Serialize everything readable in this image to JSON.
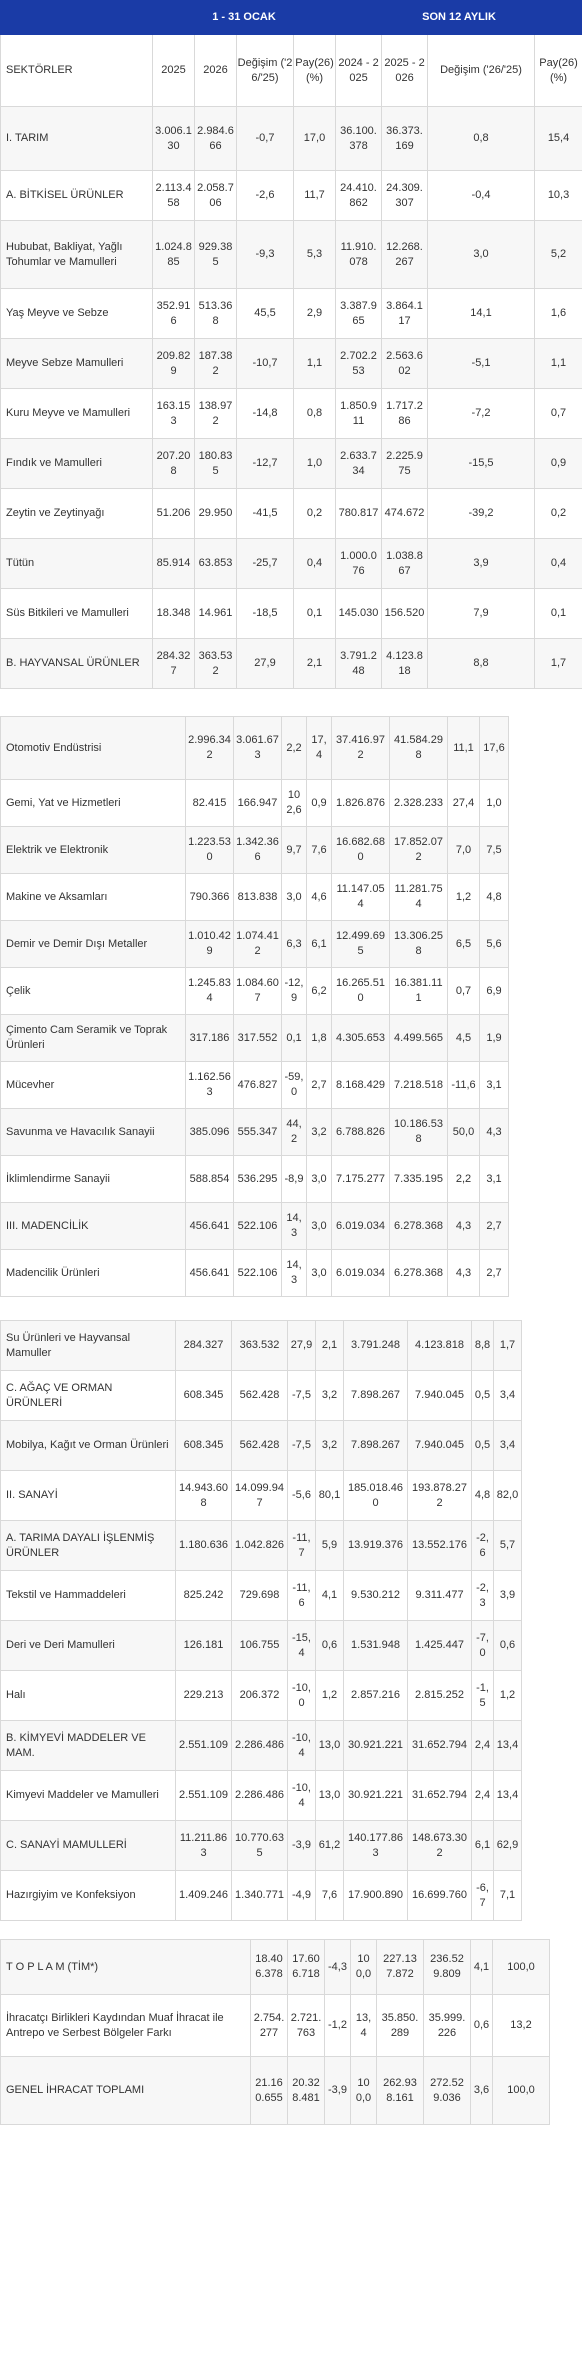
{
  "header": {
    "period1": "1 - 31 OCAK",
    "period2": "SON 12 AYLIK",
    "col_sector": "SEKTÖRLER",
    "col_y1": "2025",
    "col_y2": "2026",
    "col_change": "Değişim ('26/'25)",
    "col_share": "Pay(26) (%)",
    "col_y3": "2024 - 2025",
    "col_y4": "2025 - 2026",
    "col_change2": "Değişim ('26/'25)",
    "col_share2": "Pay(26) (%)"
  },
  "table1": [
    [
      "I. TARIM",
      "3.006.130",
      "2.984.666",
      "-0,7",
      "17,0",
      "36.100.378",
      "36.373.169",
      "0,8",
      "15,4"
    ],
    [
      "A. BİTKİSEL ÜRÜNLER",
      "2.113.458",
      "2.058.706",
      "-2,6",
      "11,7",
      "24.410.862",
      "24.309.307",
      "-0,4",
      "10,3"
    ],
    [
      "Hububat, Bakliyat, Yağlı Tohumlar ve Mamulleri",
      "1.024.885",
      "929.385",
      "-9,3",
      "5,3",
      "11.910.078",
      "12.268.267",
      "3,0",
      "5,2"
    ],
    [
      "Yaş Meyve ve Sebze",
      "352.916",
      "513.368",
      "45,5",
      "2,9",
      "3.387.965",
      "3.864.117",
      "14,1",
      "1,6"
    ],
    [
      "Meyve Sebze Mamulleri",
      "209.829",
      "187.382",
      "-10,7",
      "1,1",
      "2.702.253",
      "2.563.602",
      "-5,1",
      "1,1"
    ],
    [
      "Kuru Meyve ve Mamulleri",
      "163.153",
      "138.972",
      "-14,8",
      "0,8",
      "1.850.911",
      "1.717.286",
      "-7,2",
      "0,7"
    ],
    [
      "Fındık ve Mamulleri",
      "207.208",
      "180.835",
      "-12,7",
      "1,0",
      "2.633.734",
      "2.225.975",
      "-15,5",
      "0,9"
    ],
    [
      "Zeytin ve Zeytinyağı",
      "51.206",
      "29.950",
      "-41,5",
      "0,2",
      "780.817",
      "474.672",
      "-39,2",
      "0,2"
    ],
    [
      "Tütün",
      "85.914",
      "63.853",
      "-25,7",
      "0,4",
      "1.000.076",
      "1.038.867",
      "3,9",
      "0,4"
    ],
    [
      "Süs Bitkileri ve Mamulleri",
      "18.348",
      "14.961",
      "-18,5",
      "0,1",
      "145.030",
      "156.520",
      "7,9",
      "0,1"
    ],
    [
      "B. HAYVANSAL ÜRÜNLER",
      "284.327",
      "363.532",
      "27,9",
      "2,1",
      "3.791.248",
      "4.123.818",
      "8,8",
      "1,7"
    ]
  ],
  "table2": [
    [
      "Otomotiv Endüstrisi",
      "2.996.342",
      "3.061.673",
      "2,2",
      "17,4",
      "37.416.972",
      "41.584.298",
      "11,1",
      "17,6"
    ],
    [
      "Gemi, Yat ve Hizmetleri",
      "82.415",
      "166.947",
      "102,6",
      "0,9",
      "1.826.876",
      "2.328.233",
      "27,4",
      "1,0"
    ],
    [
      "Elektrik ve Elektronik",
      "1.223.530",
      "1.342.366",
      "9,7",
      "7,6",
      "16.682.680",
      "17.852.072",
      "7,0",
      "7,5"
    ],
    [
      "Makine ve Aksamları",
      "790.366",
      "813.838",
      "3,0",
      "4,6",
      "11.147.054",
      "11.281.754",
      "1,2",
      "4,8"
    ],
    [
      "Demir ve Demir Dışı Metaller",
      "1.010.429",
      "1.074.412",
      "6,3",
      "6,1",
      "12.499.695",
      "13.306.258",
      "6,5",
      "5,6"
    ],
    [
      "Çelik",
      "1.245.834",
      "1.084.607",
      "-12,9",
      "6,2",
      "16.265.510",
      "16.381.111",
      "0,7",
      "6,9"
    ],
    [
      "Çimento Cam Seramik ve Toprak Ürünleri",
      "317.186",
      "317.552",
      "0,1",
      "1,8",
      "4.305.653",
      "4.499.565",
      "4,5",
      "1,9"
    ],
    [
      "Mücevher",
      "1.162.563",
      "476.827",
      "-59,0",
      "2,7",
      "8.168.429",
      "7.218.518",
      "-11,6",
      "3,1"
    ],
    [
      "Savunma ve Havacılık Sanayii",
      "385.096",
      "555.347",
      "44,2",
      "3,2",
      "6.788.826",
      "10.186.538",
      "50,0",
      "4,3"
    ],
    [
      "İklimlendirme Sanayii",
      "588.854",
      "536.295",
      "-8,9",
      "3,0",
      "7.175.277",
      "7.335.195",
      "2,2",
      "3,1"
    ],
    [
      "III. MADENCİLİK",
      "456.641",
      "522.106",
      "14,3",
      "3,0",
      "6.019.034",
      "6.278.368",
      "4,3",
      "2,7"
    ],
    [
      "Madencilik Ürünleri",
      "456.641",
      "522.106",
      "14,3",
      "3,0",
      "6.019.034",
      "6.278.368",
      "4,3",
      "2,7"
    ]
  ],
  "table3": [
    [
      "Su Ürünleri ve Hayvansal Mamuller",
      "284.327",
      "363.532",
      "27,9",
      "2,1",
      "3.791.248",
      "4.123.818",
      "8,8",
      "1,7"
    ],
    [
      "C. AĞAÇ VE ORMAN ÜRÜNLERİ",
      "608.345",
      "562.428",
      "-7,5",
      "3,2",
      "7.898.267",
      "7.940.045",
      "0,5",
      "3,4"
    ],
    [
      "Mobilya, Kağıt ve Orman Ürünleri",
      "608.345",
      "562.428",
      "-7,5",
      "3,2",
      "7.898.267",
      "7.940.045",
      "0,5",
      "3,4"
    ],
    [
      "II. SANAYİ",
      "14.943.608",
      "14.099.947",
      "-5,6",
      "80,1",
      "185.018.460",
      "193.878.272",
      "4,8",
      "82,0"
    ],
    [
      "A. TARIMA DAYALI İŞLENMİŞ ÜRÜNLER",
      "1.180.636",
      "1.042.826",
      "-11,7",
      "5,9",
      "13.919.376",
      "13.552.176",
      "-2,6",
      "5,7"
    ],
    [
      "Tekstil ve Hammaddeleri",
      "825.242",
      "729.698",
      "-11,6",
      "4,1",
      "9.530.212",
      "9.311.477",
      "-2,3",
      "3,9"
    ],
    [
      "Deri ve Deri Mamulleri",
      "126.181",
      "106.755",
      "-15,4",
      "0,6",
      "1.531.948",
      "1.425.447",
      "-7,0",
      "0,6"
    ],
    [
      "Halı",
      "229.213",
      "206.372",
      "-10,0",
      "1,2",
      "2.857.216",
      "2.815.252",
      "-1,5",
      "1,2"
    ],
    [
      "B. KİMYEVİ MADDELER VE MAM.",
      "2.551.109",
      "2.286.486",
      "-10,4",
      "13,0",
      "30.921.221",
      "31.652.794",
      "2,4",
      "13,4"
    ],
    [
      "Kimyevi Maddeler ve Mamulleri",
      "2.551.109",
      "2.286.486",
      "-10,4",
      "13,0",
      "30.921.221",
      "31.652.794",
      "2,4",
      "13,4"
    ],
    [
      "C. SANAYİ MAMULLERİ",
      "11.211.863",
      "10.770.635",
      "-3,9",
      "61,2",
      "140.177.863",
      "148.673.302",
      "6,1",
      "62,9"
    ],
    [
      "Hazırgiyim ve Konfeksiyon",
      "1.409.246",
      "1.340.771",
      "-4,9",
      "7,6",
      "17.900.890",
      "16.699.760",
      "-6,7",
      "7,1"
    ]
  ],
  "table4": [
    [
      "T O P L A M (TİM*)",
      "18.406.378",
      "17.606.718",
      "-4,3",
      "100,0",
      "227.137.872",
      "236.529.809",
      "4,1",
      "100,0"
    ],
    [
      "İhracatçı Birlikleri Kaydından Muaf İhracat ile Antrepo ve Serbest Bölgeler Farkı",
      "2.754.277",
      "2.721.763",
      "-1,2",
      "13,4",
      "35.850.289",
      "35.999.226",
      "0,6",
      "13,2"
    ],
    [
      "GENEL İHRACAT TOPLAMI",
      "21.160.655",
      "20.328.481",
      "-3,9",
      "100,0",
      "262.938.161",
      "272.529.036",
      "3,6",
      "100,0"
    ]
  ]
}
